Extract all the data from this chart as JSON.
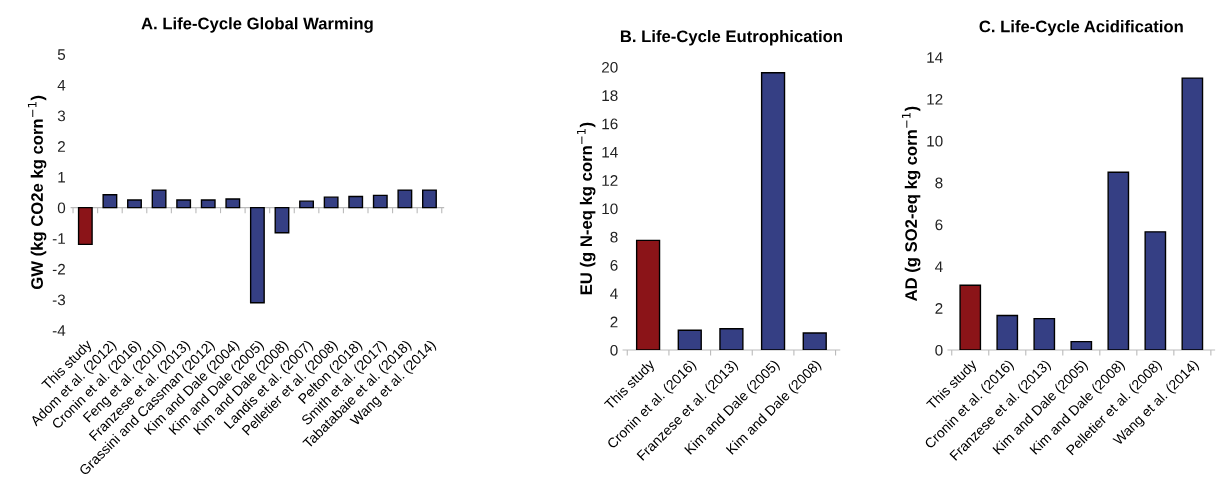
{
  "chart_data": [
    {
      "type": "bar",
      "title": "A. Life-Cycle Global Warming",
      "ylabel": "GW (kg CO2e kg corn$^{−1}$)",
      "categories": [
        "This study",
        "Adom et al. (2012)",
        "Cronin et al. (2016)",
        "Feng et al. (2010)",
        "Franzese et al. (2013)",
        "Grassini and Cassman (2012)",
        "Kim and Dale (2004)",
        "Kim and Dale (2005)",
        "Kim and Dale (2008)",
        "Landis et al. (2007)",
        "Pelletier et al. (2008)",
        "Pelton (2018)",
        "Smith et al. (2017)",
        "Tabatabaie et al. (2018)",
        "Wang et al. (2014)"
      ],
      "values": [
        -1.2,
        0.42,
        0.25,
        0.57,
        0.25,
        0.25,
        0.28,
        -3.1,
        -0.82,
        0.21,
        0.34,
        0.36,
        0.4,
        0.57,
        0.57
      ],
      "colors": [
        "#8b1418",
        "#353f84",
        "#353f84",
        "#353f84",
        "#353f84",
        "#353f84",
        "#353f84",
        "#353f84",
        "#353f84",
        "#353f84",
        "#353f84",
        "#353f84",
        "#353f84",
        "#353f84",
        "#353f84"
      ],
      "ylim": [
        -4,
        5
      ],
      "yticks": [
        -4,
        -3,
        -2,
        -1,
        0,
        1,
        2,
        3,
        4,
        5
      ],
      "ref_lines": [
        {
          "axis": "y",
          "value": 0,
          "color": "#bbbbbb"
        }
      ],
      "grid": false,
      "legend": false
    },
    {
      "type": "bar",
      "title": "B. Life-Cycle Eutrophication",
      "ylabel": "EU (g N-eq kg corn$^{−1}$)",
      "categories": [
        "This study",
        "Cronin et al. (2016)",
        "Franzese et al. (2013)",
        "Kim and Dale (2005)",
        "Kim and Dale (2008)"
      ],
      "values": [
        7.75,
        1.4,
        1.5,
        19.6,
        1.2
      ],
      "colors": [
        "#8b1418",
        "#353f84",
        "#353f84",
        "#353f84",
        "#353f84"
      ],
      "ylim": [
        0,
        20
      ],
      "yticks": [
        0,
        2,
        4,
        6,
        8,
        10,
        12,
        14,
        16,
        18,
        20
      ],
      "grid": false,
      "legend": false
    },
    {
      "type": "bar",
      "title": "C. Life-Cycle Acidification",
      "ylabel": "AD (g SO2-eq kg corn$^{−1}$)",
      "categories": [
        "This study",
        "Cronin et al. (2016)",
        "Franzese et al. (2013)",
        "Kim and Dale (2005)",
        "Kim and Dale (2008)",
        "Pelletier et al. (2008)",
        "Wang et al. (2014)"
      ],
      "values": [
        3.1,
        1.65,
        1.5,
        0.4,
        8.5,
        5.65,
        13.0
      ],
      "colors": [
        "#8b1418",
        "#353f84",
        "#353f84",
        "#353f84",
        "#353f84",
        "#353f84",
        "#353f84"
      ],
      "ylim": [
        0,
        14
      ],
      "yticks": [
        0,
        2,
        4,
        6,
        8,
        10,
        12,
        14
      ],
      "grid": false,
      "legend": false
    }
  ]
}
